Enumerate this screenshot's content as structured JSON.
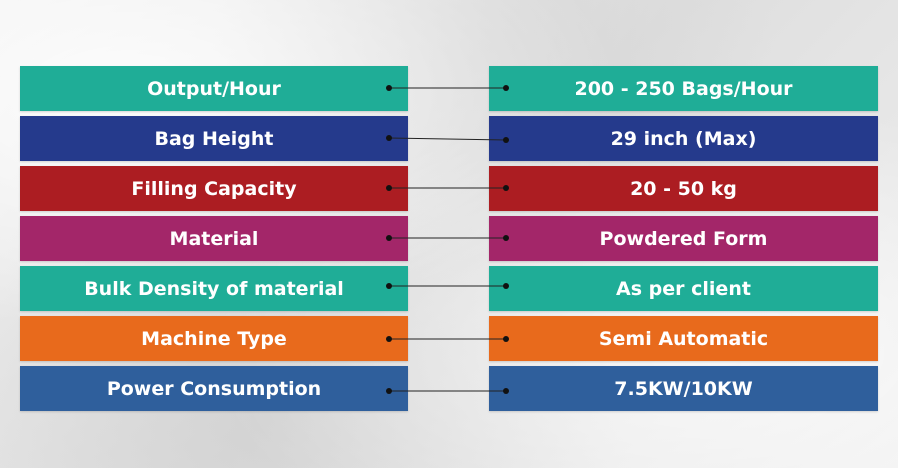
{
  "rows": [
    {
      "label": "Output/Hour",
      "value": "200 - 250 Bags/Hour",
      "left_color": "#1fad97",
      "right_color": "#1fad97"
    },
    {
      "label": "Bag Height",
      "value": "29 inch (Max)",
      "left_color": "#253a8c",
      "right_color": "#253a8c"
    },
    {
      "label": "Filling Capacity",
      "value": "20 - 50 kg",
      "left_color": "#ac1d22",
      "right_color": "#ac1d22"
    },
    {
      "label": "Material",
      "value": "Powdered Form",
      "left_color": "#a32669",
      "right_color": "#a32669"
    },
    {
      "label": "Bulk Density of material",
      "value": "As per client",
      "left_color": "#1fad97",
      "right_color": "#1fad97"
    },
    {
      "label": "Machine Type",
      "value": "Semi Automatic",
      "left_color": "#e86a1c",
      "right_color": "#e86a1c"
    },
    {
      "label": "Power Consumption",
      "value": "7.5KW/10KW",
      "left_color": "#2f5f9c",
      "right_color": "#2f5f9c"
    }
  ]
}
